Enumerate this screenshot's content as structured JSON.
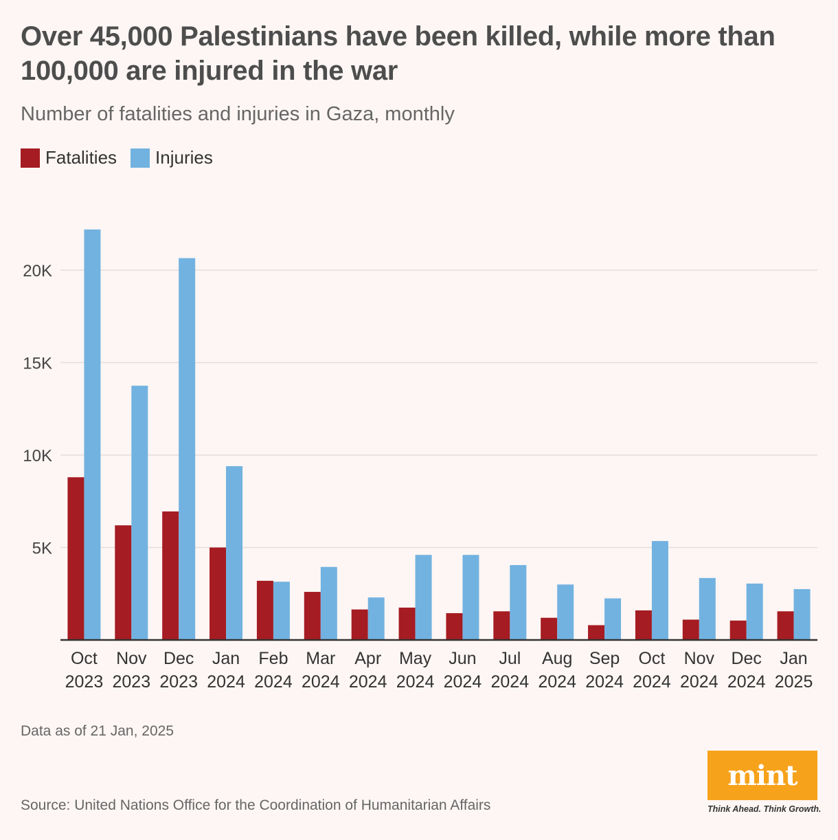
{
  "title": "Over 45,000 Palestinians have been killed, while more than 100,000 are injured in the war",
  "subtitle": "Number of fatalities and injuries in Gaza, monthly",
  "note": "Data as of 21 Jan, 2025",
  "source": "Source: United Nations Office for the Coordination of Humanitarian Affairs",
  "logo": {
    "text": "mint",
    "tagline": "Think Ahead. Think Growth."
  },
  "colors": {
    "fatalities": "#a51c22",
    "injuries": "#72b2e0",
    "logo": "#f7a21b"
  },
  "chart_data": {
    "type": "bar",
    "categories": [
      [
        "Oct",
        "2023"
      ],
      [
        "Nov",
        "2023"
      ],
      [
        "Dec",
        "2023"
      ],
      [
        "Jan",
        "2024"
      ],
      [
        "Feb",
        "2024"
      ],
      [
        "Mar",
        "2024"
      ],
      [
        "Apr",
        "2024"
      ],
      [
        "May",
        "2024"
      ],
      [
        "Jun",
        "2024"
      ],
      [
        "Jul",
        "2024"
      ],
      [
        "Aug",
        "2024"
      ],
      [
        "Sep",
        "2024"
      ],
      [
        "Oct",
        "2024"
      ],
      [
        "Nov",
        "2024"
      ],
      [
        "Dec",
        "2024"
      ],
      [
        "Jan",
        "2025"
      ]
    ],
    "series": [
      {
        "name": "Fatalities",
        "color": "#a51c22",
        "values": [
          8800,
          6200,
          6950,
          5000,
          3200,
          2600,
          1650,
          1750,
          1450,
          1550,
          1200,
          800,
          1600,
          1100,
          1050,
          1550
        ]
      },
      {
        "name": "Injuries",
        "color": "#72b2e0",
        "values": [
          22200,
          13750,
          20650,
          9400,
          3150,
          3950,
          2300,
          4600,
          4600,
          4050,
          3000,
          2250,
          5350,
          3350,
          3050,
          2750
        ]
      }
    ],
    "yticks": [
      5000,
      10000,
      15000,
      20000
    ],
    "ytick_labels": [
      "5K",
      "10K",
      "15K",
      "20K"
    ],
    "ylim": [
      0,
      25000
    ],
    "grid": true,
    "legend": "top-left"
  }
}
